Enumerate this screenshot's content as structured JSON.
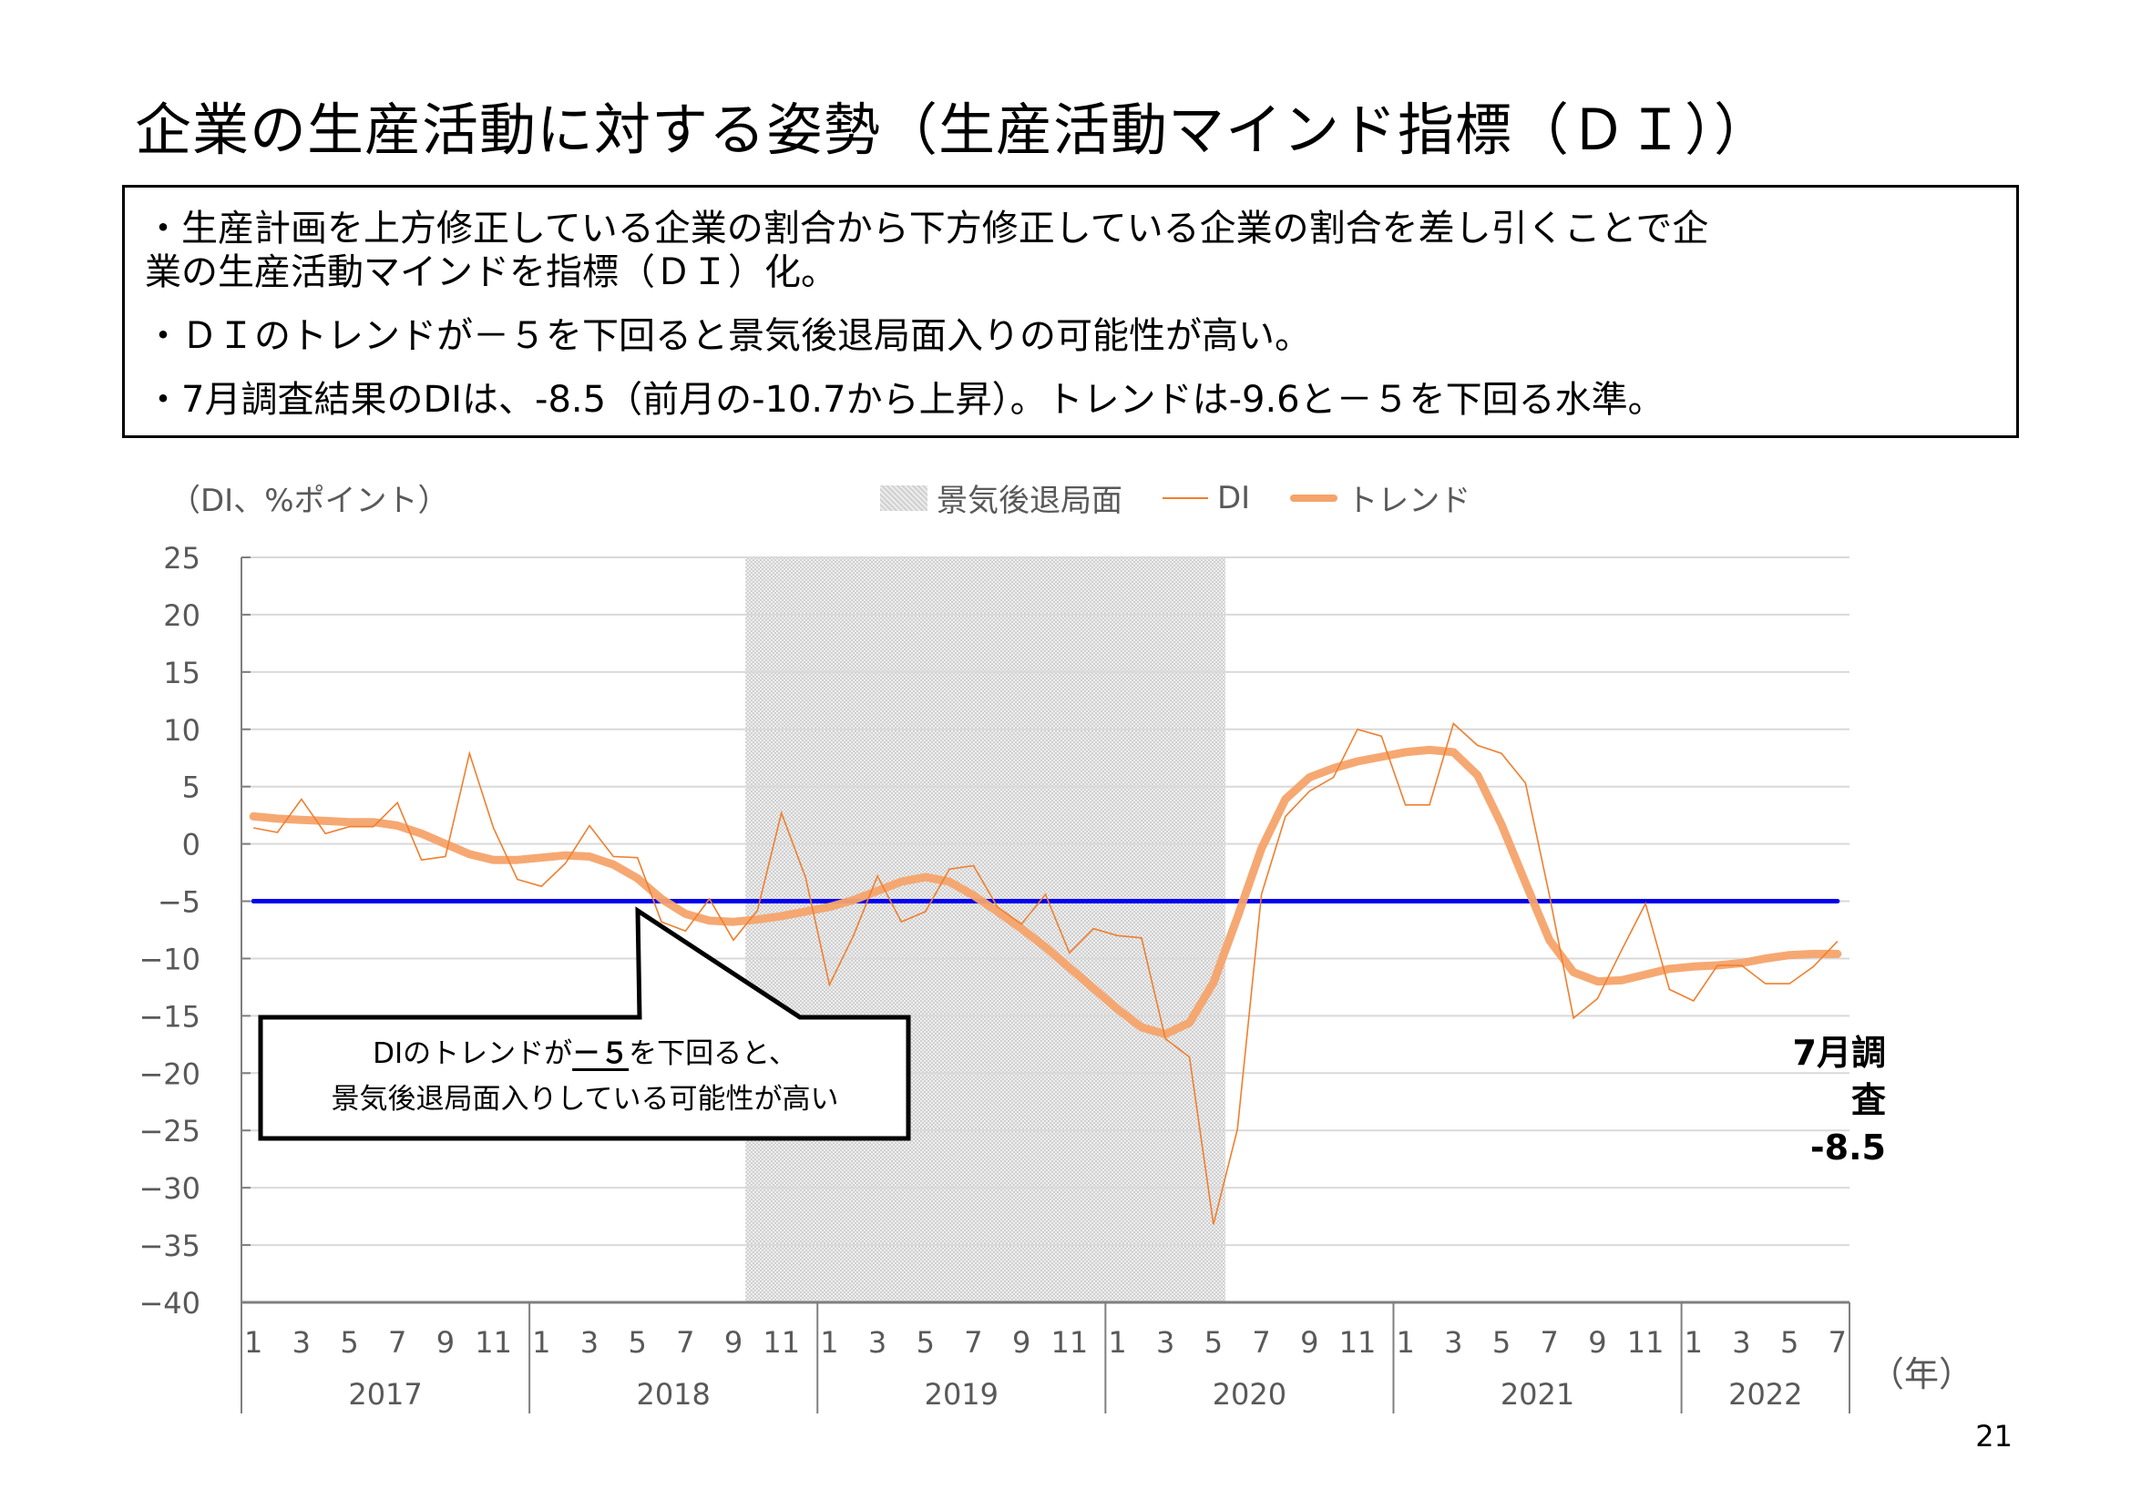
{
  "page": {
    "title": "企業の生産活動に対する姿勢（生産活動マインド指標（ＤＩ））",
    "page_number": "21"
  },
  "summary": {
    "line1": "・生産計画を上方修正している企業の割合から下方修正している企業の割合を差し引くことで企",
    "line2": "業の生産活動マインドを指標（ＤＩ）化。",
    "line3": "・ＤＩのトレンドが－５を下回ると景気後退局面入りの可能性が高い。",
    "line4": "・7月調査結果のDIは、-8.5（前月の-10.7から上昇）。トレンドは-9.6と－５を下回る水準。"
  },
  "chart_labels": {
    "unit": "（DI、%ポイント）",
    "x_unit": "（年）",
    "legend_recession": "景気後退局面",
    "legend_di": "DI",
    "legend_trend": "トレンド",
    "callout_pre": "DIのトレンドが",
    "callout_under": "－５",
    "callout_post": "を下回ると、",
    "callout_line2": "景気後退局面入りしている可能性が高い",
    "survey_month": "7月調査",
    "survey_value": "-8.5"
  },
  "colors": {
    "di": "#f07f2e",
    "trend": "#f5a36a",
    "threshold": "#0000ee",
    "recession": "#e0e0e0",
    "grid": "#d9d9d9",
    "axis": "#7f7f7f",
    "tick_text": "#595959"
  },
  "chart_data": {
    "type": "line",
    "title": "企業の生産活動に対する姿勢（生産活動マインド指標（ＤＩ））",
    "xlabel": "（年）",
    "ylabel": "（DI、%ポイント）",
    "ylim": [
      -40,
      25
    ],
    "yticks": [
      25,
      20,
      15,
      10,
      5,
      0,
      -5,
      -10,
      -15,
      -20,
      -25,
      -30,
      -35,
      -40
    ],
    "grid": true,
    "legend_position": "top",
    "x_start": "2017-01",
    "x_end": "2022-07",
    "years": [
      "2017",
      "2018",
      "2019",
      "2020",
      "2021",
      "2022"
    ],
    "month_tick_labels": [
      "1",
      "3",
      "5",
      "7",
      "9",
      "11"
    ],
    "month_tick_labels_2022": [
      "1",
      "3",
      "5",
      "7"
    ],
    "recession_shading": {
      "start": "2018-10",
      "end": "2020-05",
      "label": "景気後退局面"
    },
    "threshold": {
      "value": -5,
      "color": "#0000ee"
    },
    "series": [
      {
        "name": "DI",
        "values": [
          1.4,
          1.0,
          3.9,
          0.9,
          1.5,
          1.5,
          3.6,
          -1.4,
          -1.1,
          7.9,
          1.4,
          -3.1,
          -3.7,
          -1.7,
          1.6,
          -1.1,
          -1.2,
          -6.8,
          -7.6,
          -4.8,
          -8.4,
          -5.8,
          2.7,
          -2.9,
          -12.3,
          -8.0,
          -2.8,
          -6.8,
          -5.9,
          -2.2,
          -1.9,
          -5.5,
          -7.0,
          -4.4,
          -9.5,
          -7.4,
          -8.0,
          -8.2,
          -17.0,
          -18.6,
          -33.2,
          -24.9,
          -4.4,
          2.4,
          4.6,
          5.8,
          10.0,
          9.4,
          3.4,
          3.4,
          10.5,
          8.6,
          7.9,
          5.3,
          -4.5,
          -15.2,
          -13.5,
          -9.3,
          -5.2,
          -12.7,
          -13.7,
          -10.6,
          -10.6,
          -12.2,
          -12.2,
          -10.7,
          -8.5
        ]
      },
      {
        "name": "トレンド",
        "values": [
          2.4,
          2.2,
          2.1,
          2.0,
          1.9,
          1.9,
          1.6,
          0.9,
          0.0,
          -0.9,
          -1.4,
          -1.4,
          -1.2,
          -1.0,
          -1.1,
          -1.8,
          -3.0,
          -4.8,
          -6.1,
          -6.7,
          -6.8,
          -6.6,
          -6.3,
          -5.9,
          -5.5,
          -4.9,
          -4.1,
          -3.3,
          -2.9,
          -3.3,
          -4.5,
          -5.9,
          -7.4,
          -9.0,
          -10.8,
          -12.6,
          -14.4,
          -16.0,
          -16.6,
          -15.6,
          -12.1,
          -6.4,
          -0.4,
          3.9,
          5.8,
          6.6,
          7.2,
          7.6,
          8.0,
          8.2,
          8.0,
          6.0,
          1.7,
          -3.4,
          -8.4,
          -11.2,
          -12.0,
          -11.9,
          -11.4,
          -10.9,
          -10.7,
          -10.6,
          -10.4,
          -10.0,
          -9.7,
          -9.6,
          -9.6
        ]
      }
    ],
    "annotations": [
      {
        "text": "DIのトレンドが－５を下回ると、景気後退局面入りしている可能性が高い",
        "type": "callout"
      },
      {
        "text": "7月調査 -8.5",
        "x": "2022-07"
      }
    ]
  }
}
